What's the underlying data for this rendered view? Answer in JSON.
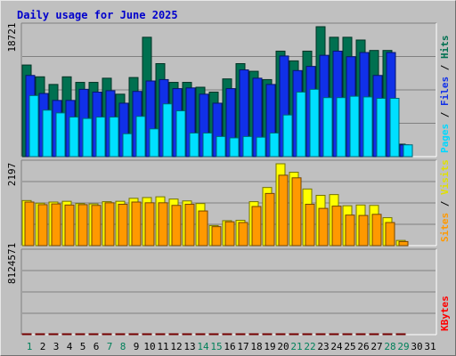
{
  "chart_data": {
    "title": "Daily usage for June 2025",
    "type": "bar",
    "days": [
      "1",
      "2",
      "3",
      "4",
      "5",
      "6",
      "7",
      "8",
      "9",
      "10",
      "11",
      "12",
      "13",
      "14",
      "15",
      "16",
      "17",
      "18",
      "19",
      "20",
      "21",
      "22",
      "23",
      "24",
      "25",
      "26",
      "27",
      "28",
      "29",
      "30",
      "31"
    ],
    "weekend_days": [
      "1",
      "7",
      "8",
      "14",
      "15",
      "21",
      "22",
      "28",
      "29"
    ],
    "panels": [
      {
        "id": "hits",
        "max_label": "18721",
        "max": 18721,
        "legend": [
          "Pages",
          "Files",
          "Hits"
        ],
        "series": [
          {
            "name": "Hits",
            "color": "#007050",
            "values": [
              13200,
              11500,
              10400,
              11500,
              10700,
              10700,
              11300,
              9000,
              11400,
              17200,
              13400,
              10700,
              10700,
              10000,
              9300,
              11200,
              13400,
              12300,
              11100,
              15200,
              13800,
              15200,
              18721,
              17200,
              17200,
              16800,
              15300,
              15300,
              1800,
              0,
              0
            ]
          },
          {
            "name": "Files",
            "color": "#1030e8",
            "values": [
              11700,
              9100,
              8100,
              8100,
              9700,
              9300,
              9500,
              7700,
              9400,
              10900,
              11100,
              9800,
              9900,
              9000,
              7700,
              9800,
              12500,
              11300,
              10400,
              14500,
              12400,
              13000,
              14600,
              15200,
              14400,
              15000,
              11700,
              15000,
              1700,
              0,
              0
            ]
          },
          {
            "name": "Pages",
            "color": "#00e0ff",
            "values": [
              8800,
              6700,
              6300,
              5700,
              5500,
              5700,
              5700,
              3300,
              5800,
              4000,
              7600,
              6600,
              3400,
              3400,
              2900,
              2700,
              2900,
              2800,
              3400,
              6000,
              9300,
              9700,
              8500,
              8500,
              8700,
              8600,
              8400,
              8400,
              1700,
              0,
              0
            ]
          }
        ]
      },
      {
        "id": "visits",
        "max_label": "2197",
        "max": 2197,
        "legend": [
          "Sites",
          "Visits"
        ],
        "series": [
          {
            "name": "Visits",
            "color": "#ffff00",
            "values": [
              1210,
              1140,
              1170,
              1190,
              1130,
              1120,
              1180,
              1190,
              1270,
              1290,
              1310,
              1250,
              1200,
              1130,
              540,
              670,
              680,
              1180,
              1560,
              2197,
              1970,
              1520,
              1350,
              1370,
              1070,
              1090,
              1080,
              750,
              140,
              0,
              0
            ]
          },
          {
            "name": "Sites",
            "color": "#ff9900",
            "values": [
              1170,
              1100,
              1120,
              1090,
              1100,
              1080,
              1150,
              1110,
              1170,
              1150,
              1150,
              1080,
              1110,
              930,
              510,
              640,
              620,
              1050,
              1400,
              1890,
              1820,
              1110,
              1000,
              1060,
              820,
              810,
              840,
              620,
              110,
              0,
              0
            ]
          }
        ]
      },
      {
        "id": "kbytes",
        "max_label": "8124571",
        "max": 8124571,
        "legend": [
          "KBytes"
        ],
        "series": [
          {
            "name": "KBytes",
            "color": "#ff0000",
            "values": [
              5400,
              4000,
              3200,
              4500,
              3600,
              3300,
              3900,
              4800,
              5200,
              7600,
              5200,
              5200,
              5400,
              4000,
              5600,
              7400,
              6800,
              7000,
              7400,
              5600,
              5100,
              5800,
              8000,
              8000,
              8124,
              7000,
              6000,
              4500,
              200,
              0,
              0
            ]
          }
        ]
      }
    ]
  }
}
